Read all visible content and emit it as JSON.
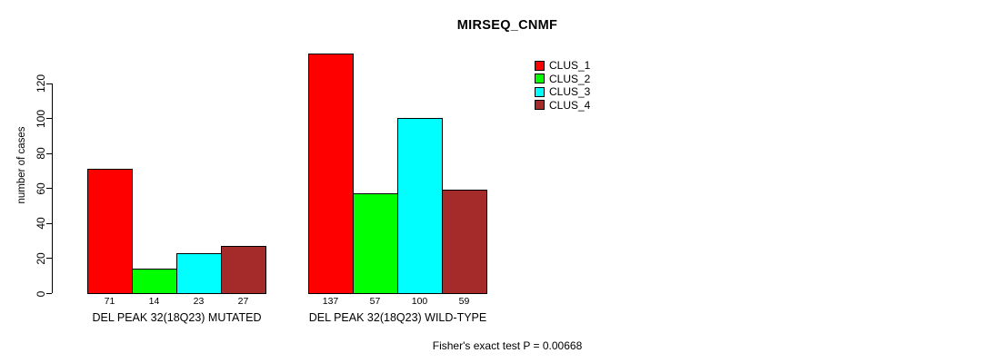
{
  "chart_data": {
    "type": "bar",
    "title": "MIRSEQ_CNMF",
    "xlabel": "",
    "ylabel": "number of cases",
    "ylim": [
      0,
      120
    ],
    "yticks": [
      0,
      20,
      40,
      60,
      80,
      100,
      120
    ],
    "grid": false,
    "legend_position": "top-right",
    "categories": [
      "DEL PEAK 32(18Q23) MUTATED",
      "DEL PEAK 32(18Q23) WILD-TYPE"
    ],
    "series": [
      {
        "name": "CLUS_1",
        "color": "#FF0000",
        "values": [
          71,
          137
        ]
      },
      {
        "name": "CLUS_2",
        "color": "#00FF00",
        "values": [
          14,
          57
        ]
      },
      {
        "name": "CLUS_3",
        "color": "#00FFFF",
        "values": [
          23,
          100
        ]
      },
      {
        "name": "CLUS_4",
        "color": "#A52A2A",
        "values": [
          27,
          59
        ]
      }
    ],
    "bar_value_labels": [
      [
        71,
        14,
        23,
        27
      ],
      [
        137,
        57,
        100,
        59
      ]
    ],
    "annotation": "Fisher's exact test P = 0.00668",
    "colors": {
      "background": "#FFFFFF",
      "axis": "#000000",
      "bar_border": "#000000"
    }
  }
}
